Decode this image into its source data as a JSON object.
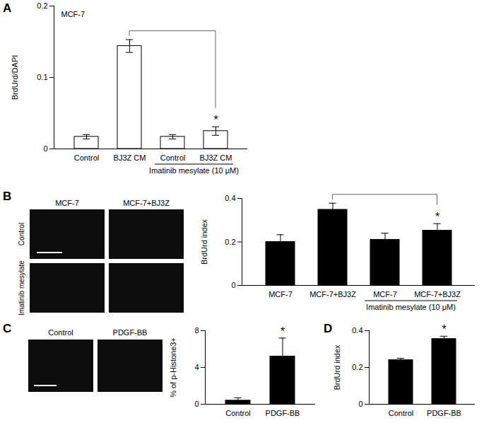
{
  "chart_data": [
    {
      "panel": "A",
      "type": "bar",
      "annotation": "MCF-7",
      "categories": [
        "Control",
        "BJ3Z CM",
        "Control",
        "BJ3Z CM"
      ],
      "category_groups": [
        null,
        null,
        "Imatinib mesylate (10 μM)",
        "Imatinib mesylate (10 μM)"
      ],
      "values": [
        0.017,
        0.144,
        0.017,
        0.025
      ],
      "errors": [
        0.003,
        0.009,
        0.003,
        0.006
      ],
      "significance": [
        null,
        null,
        null,
        "*"
      ],
      "ylabel": "BrdUrd/DAPI",
      "ylim": [
        0,
        0.2
      ],
      "yticks": [
        0,
        0.1,
        0.2
      ],
      "color": "#ffffff"
    },
    {
      "type": "bar",
      "categories": [
        "MCF-7",
        "MCF-7+BJ3Z",
        "MCF-7",
        "MCF-7+BJ3Z"
      ],
      "category_groups": [
        null,
        null,
        "Imatinib mesylate (10 μM)",
        "Imatinib mesylate (10 μM)"
      ],
      "values": [
        0.2,
        0.348,
        0.21,
        0.252
      ],
      "errors": [
        0.033,
        0.03,
        0.03,
        0.032
      ],
      "significance": [
        null,
        null,
        null,
        "*"
      ],
      "ylabel": "BrdUrd index",
      "ylim": [
        0,
        0.4
      ],
      "yticks": [
        0,
        0.2,
        0.4
      ],
      "color": "#000000"
    },
    {
      "type": "bar",
      "categories": [
        "Control",
        "PDGF-BB"
      ],
      "values": [
        0.4,
        5.2
      ],
      "errors": [
        0.3,
        2.0
      ],
      "significance": [
        null,
        "*"
      ],
      "ylabel": "% of p-Histone3+",
      "ylim": [
        0,
        8
      ],
      "yticks": [
        0,
        4,
        8
      ],
      "color": "#000000"
    },
    {
      "panel": "D",
      "type": "bar",
      "categories": [
        "Control",
        "PDGF-BB"
      ],
      "values": [
        0.24,
        0.355
      ],
      "errors": [
        0.01,
        0.015
      ],
      "significance": [
        null,
        "*"
      ],
      "ylabel": "BrdUrd index",
      "ylim": [
        0,
        0.4
      ],
      "yticks": [
        0,
        0.2,
        0.4
      ],
      "color": "#000000"
    }
  ],
  "images": [
    {
      "panel": "B",
      "columns": [
        "MCF-7",
        "MCF-7+BJ3Z"
      ],
      "rows": [
        "Control",
        "Imatinib mesylate"
      ]
    },
    {
      "panel": "C",
      "columns": [
        "Control",
        "PDGF-BB"
      ]
    }
  ]
}
